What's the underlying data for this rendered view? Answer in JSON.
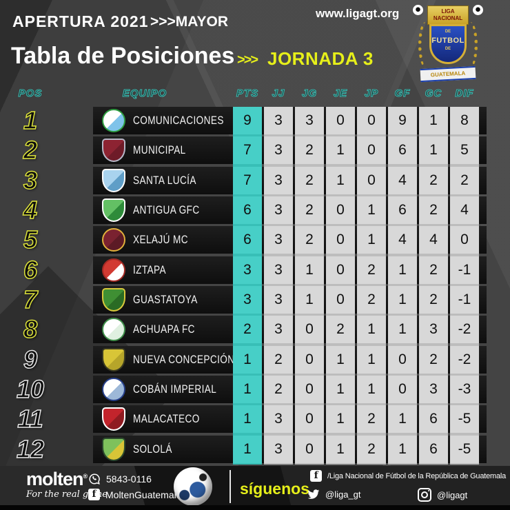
{
  "header": {
    "season": "APERTURA 2021",
    "category": ">>>MAYOR",
    "title": "Tabla de Posiciones",
    "arrows": ">>>",
    "jornada": "JORNADA 3",
    "website": "www.ligagt.org",
    "league_logo": {
      "banner_line1": "LIGA",
      "banner_line2": "NACIONAL",
      "de1": "DE",
      "futbol": "FUTBOL",
      "de2": "DE",
      "country": "GUATEMALA"
    }
  },
  "colors": {
    "teal_column": "#38bfb7",
    "teal_cell": "#47cfc7",
    "yellow_accent": "#e6ef1a",
    "gray_cell": "#d8d8d8",
    "row_bar": "#151515",
    "background": "#3e3e3e"
  },
  "table": {
    "columns": [
      "POS",
      "EQUIPO",
      "PTS",
      "JJ",
      "JG",
      "JE",
      "JP",
      "GF",
      "GC",
      "DIF"
    ],
    "stat_keys": [
      "pts",
      "jj",
      "jg",
      "je",
      "jp",
      "gf",
      "gc",
      "dif"
    ],
    "rows": [
      {
        "pos": "1",
        "team": "COMUNICACIONES",
        "stats": [
          "9",
          "3",
          "3",
          "0",
          "0",
          "9",
          "1",
          "8"
        ],
        "pos_style": "yellow",
        "logo": {
          "shape": "circle",
          "colors": [
            "#ffffff",
            "#7fc3ea",
            "#2f9e41"
          ]
        }
      },
      {
        "pos": "2",
        "team": "MUNICIPAL",
        "stats": [
          "7",
          "3",
          "2",
          "1",
          "0",
          "6",
          "1",
          "5"
        ],
        "pos_style": "yellow",
        "logo": {
          "shape": "shield",
          "colors": [
            "#8d2332",
            "#6e1b28",
            "#b8b8c8"
          ]
        }
      },
      {
        "pos": "3",
        "team": "SANTA LUCÍA",
        "stats": [
          "7",
          "3",
          "2",
          "1",
          "0",
          "4",
          "2",
          "2"
        ],
        "pos_style": "yellow",
        "logo": {
          "shape": "shield",
          "colors": [
            "#a9d3ee",
            "#5f9ec7",
            "#ffffff"
          ]
        }
      },
      {
        "pos": "4",
        "team": "ANTIGUA GFC",
        "stats": [
          "6",
          "3",
          "2",
          "0",
          "1",
          "6",
          "2",
          "4"
        ],
        "pos_style": "yellow",
        "logo": {
          "shape": "shield",
          "colors": [
            "#63c064",
            "#2e8b3a",
            "#ffffff"
          ]
        }
      },
      {
        "pos": "5",
        "team": "XELAJÚ MC",
        "stats": [
          "6",
          "3",
          "2",
          "0",
          "1",
          "4",
          "4",
          "0"
        ],
        "pos_style": "yellow",
        "logo": {
          "shape": "circle",
          "colors": [
            "#7a2230",
            "#5c1a25",
            "#e0b13c"
          ]
        }
      },
      {
        "pos": "6",
        "team": "IZTAPA",
        "stats": [
          "3",
          "3",
          "1",
          "0",
          "2",
          "1",
          "2",
          "-1"
        ],
        "pos_style": "yellow",
        "logo": {
          "shape": "circle",
          "colors": [
            "#d23a32",
            "#ffffff",
            "#a42a24"
          ]
        }
      },
      {
        "pos": "7",
        "team": "GUASTATOYA",
        "stats": [
          "3",
          "3",
          "1",
          "0",
          "2",
          "1",
          "2",
          "-1"
        ],
        "pos_style": "yellow",
        "logo": {
          "shape": "shield",
          "colors": [
            "#3f8f33",
            "#2a6b24",
            "#d9c93c"
          ]
        }
      },
      {
        "pos": "8",
        "team": "ACHUAPA FC",
        "stats": [
          "2",
          "3",
          "0",
          "2",
          "1",
          "1",
          "3",
          "-2"
        ],
        "pos_style": "yellow",
        "logo": {
          "shape": "circle",
          "colors": [
            "#ffffff",
            "#dff0e0",
            "#3f8f4a"
          ]
        }
      },
      {
        "pos": "9",
        "team": "NUEVA CONCEPCIÓN",
        "stats": [
          "1",
          "2",
          "0",
          "1",
          "1",
          "0",
          "2",
          "-2"
        ],
        "pos_style": "white",
        "logo": {
          "shape": "shield",
          "colors": [
            "#d8c537",
            "#b6a52a",
            "#3b3b22"
          ]
        }
      },
      {
        "pos": "10",
        "team": "COBÁN IMPERIAL",
        "stats": [
          "1",
          "2",
          "0",
          "1",
          "1",
          "0",
          "3",
          "-3"
        ],
        "pos_style": "white",
        "logo": {
          "shape": "circle",
          "colors": [
            "#ffffff",
            "#9db8d8",
            "#27408b"
          ]
        }
      },
      {
        "pos": "11",
        "team": "MALACATECO",
        "stats": [
          "1",
          "3",
          "0",
          "1",
          "2",
          "1",
          "6",
          "-5"
        ],
        "pos_style": "white",
        "logo": {
          "shape": "shield",
          "colors": [
            "#c2242c",
            "#8f1b21",
            "#ffffff"
          ]
        }
      },
      {
        "pos": "12",
        "team": "SOLOLÁ",
        "stats": [
          "1",
          "3",
          "0",
          "1",
          "2",
          "1",
          "6",
          "-5"
        ],
        "pos_style": "white",
        "logo": {
          "shape": "shield",
          "colors": [
            "#7ec15c",
            "#d8c537",
            "#2c4a2e"
          ]
        }
      }
    ]
  },
  "chart_data": {
    "type": "table",
    "title": "Tabla de Posiciones - Apertura 2021 - Jornada 3 - Liga Nacional de Fútbol de Guatemala",
    "columns": [
      "POS",
      "EQUIPO",
      "PTS",
      "JJ",
      "JG",
      "JE",
      "JP",
      "GF",
      "GC",
      "DIF"
    ],
    "rows": [
      [
        1,
        "COMUNICACIONES",
        9,
        3,
        3,
        0,
        0,
        9,
        1,
        8
      ],
      [
        2,
        "MUNICIPAL",
        7,
        3,
        2,
        1,
        0,
        6,
        1,
        5
      ],
      [
        3,
        "SANTA LUCÍA",
        7,
        3,
        2,
        1,
        0,
        4,
        2,
        2
      ],
      [
        4,
        "ANTIGUA GFC",
        6,
        3,
        2,
        0,
        1,
        6,
        2,
        4
      ],
      [
        5,
        "XELAJÚ MC",
        6,
        3,
        2,
        0,
        1,
        4,
        4,
        0
      ],
      [
        6,
        "IZTAPA",
        3,
        3,
        1,
        0,
        2,
        1,
        2,
        -1
      ],
      [
        7,
        "GUASTATOYA",
        3,
        3,
        1,
        0,
        2,
        1,
        2,
        -1
      ],
      [
        8,
        "ACHUAPA FC",
        2,
        3,
        0,
        2,
        1,
        1,
        3,
        -2
      ],
      [
        9,
        "NUEVA CONCEPCIÓN",
        1,
        2,
        0,
        1,
        1,
        0,
        2,
        -2
      ],
      [
        10,
        "COBÁN IMPERIAL",
        1,
        2,
        0,
        1,
        1,
        0,
        3,
        -3
      ],
      [
        11,
        "MALACATECO",
        1,
        3,
        0,
        1,
        2,
        1,
        6,
        -5
      ],
      [
        12,
        "SOLOLÁ",
        1,
        3,
        0,
        1,
        2,
        1,
        6,
        -5
      ]
    ]
  },
  "footer": {
    "molten": "molten",
    "molten_reg": "®",
    "molten_tagline": "For the real game",
    "phone": "5843-0116",
    "molten_facebook": "MoltenGuatemala",
    "follow_us": "síguenos",
    "facebook_page": "/Liga Nacional de Fútbol de la República de Guatemala",
    "twitter_handle": "@liga_gt",
    "instagram_handle": "@ligagt"
  },
  "icons": {
    "whatsapp": "phone-in-circle",
    "facebook": "white-square-f",
    "twitter": "bird",
    "instagram": "camera-outline",
    "soccer_ball": "white-blue-ball"
  }
}
